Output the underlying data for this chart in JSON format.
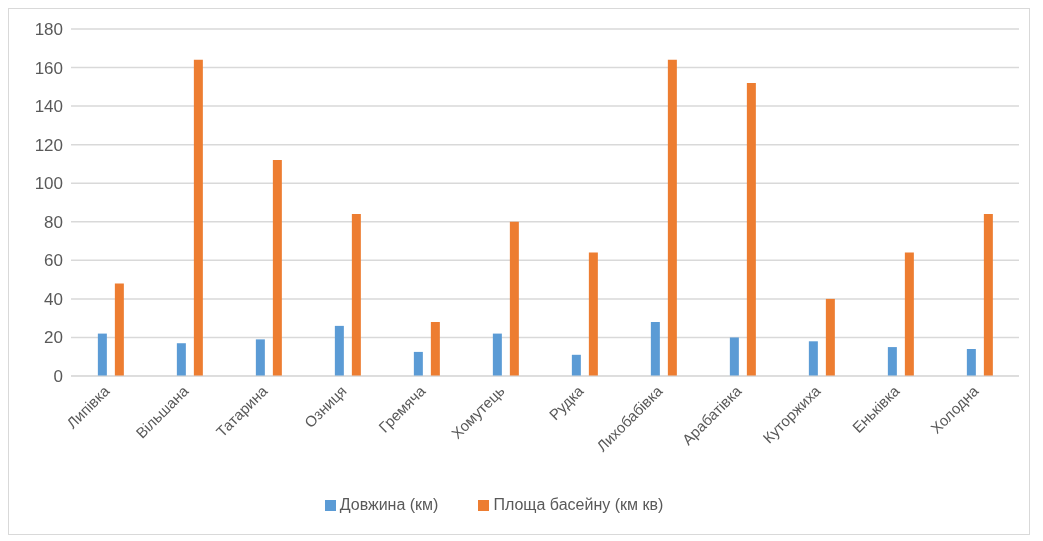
{
  "chart_data": {
    "type": "bar",
    "categories": [
      "Липівка",
      "Вільшана",
      "Татарина",
      "Озниця",
      "Гремяча",
      "Хомутець",
      "Рудка",
      "Лихобабівка",
      "Арабатівка",
      "Куторжиха",
      "Еньківка",
      "Холодна"
    ],
    "series": [
      {
        "name": "Довжина (км)",
        "color": "#5b9bd5",
        "values": [
          22,
          17,
          19,
          26,
          12.5,
          22,
          11,
          28,
          20,
          18,
          15,
          14
        ]
      },
      {
        "name": "Площа басейну (км кв)",
        "color": "#ed7d31",
        "values": [
          48,
          164,
          112,
          84,
          28,
          80,
          64,
          164,
          152,
          40,
          64,
          84
        ]
      }
    ],
    "ylim": [
      0,
      180
    ],
    "yticks": [
      0,
      20,
      40,
      60,
      80,
      100,
      120,
      140,
      160,
      180
    ],
    "grid": "y",
    "legend": "bottom"
  }
}
